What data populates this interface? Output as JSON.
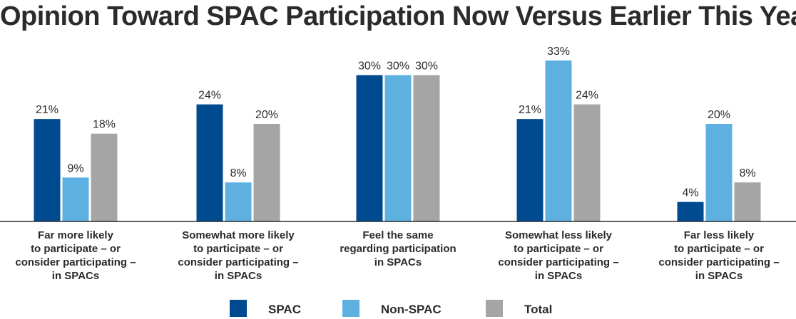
{
  "chart_data": {
    "type": "bar",
    "title": "Opinion Toward SPAC Participation Now Versus Earlier This Year",
    "categories": [
      [
        "Far more likely",
        "to participate – or",
        "consider participating –",
        "in SPACs"
      ],
      [
        "Somewhat more likely",
        "to participate – or",
        "consider participating –",
        "in SPACs"
      ],
      [
        "Feel the same",
        "regarding participation",
        "in SPACs"
      ],
      [
        "Somewhat less likely",
        "to participate – or",
        "consider participating –",
        "in SPACs"
      ],
      [
        "Far less likely",
        "to participate – or",
        "consider participating –",
        "in SPACs"
      ]
    ],
    "series": [
      {
        "name": "SPAC",
        "color": "#004a8f",
        "values": [
          21,
          24,
          30,
          21,
          4
        ]
      },
      {
        "name": "Non-SPAC",
        "color": "#5eb0e1",
        "values": [
          9,
          8,
          30,
          33,
          20
        ]
      },
      {
        "name": "Total",
        "color": "#a5a5a5",
        "values": [
          18,
          20,
          30,
          24,
          8
        ]
      }
    ],
    "value_suffix": "%",
    "ylim": [
      0,
      35
    ],
    "grid": false,
    "legend_position": "bottom"
  }
}
